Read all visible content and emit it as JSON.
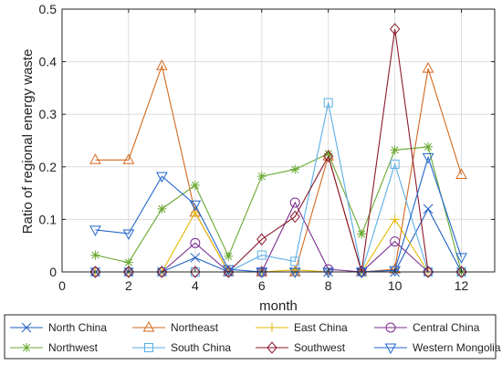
{
  "chart_data": {
    "type": "line",
    "xlabel": "month",
    "ylabel": "Ratio of regional energy waste",
    "xlim": [
      0,
      13
    ],
    "ylim": [
      0,
      0.5
    ],
    "xticks": [
      0,
      2,
      4,
      6,
      8,
      10,
      12
    ],
    "yticks": [
      0,
      0.1,
      0.2,
      0.3,
      0.4,
      0.5
    ],
    "xtick_labels": [
      "0",
      "2",
      "4",
      "6",
      "8",
      "10",
      "12"
    ],
    "ytick_labels": [
      "0",
      "0.1",
      "0.2",
      "0.3",
      "0.4",
      "0.5"
    ],
    "grid": true,
    "legend_position": "bottom",
    "x": [
      1,
      2,
      3,
      4,
      5,
      6,
      7,
      8,
      9,
      10,
      11,
      12
    ],
    "series": [
      {
        "name": "North China",
        "color": "#1f5fbf",
        "marker": "x",
        "values": [
          0,
          0,
          0,
          0.027,
          0,
          0,
          0,
          0,
          0,
          0,
          0.12,
          0
        ]
      },
      {
        "name": "Northeast",
        "color": "#d2691e",
        "marker": "triangle-up",
        "values": [
          0.213,
          0.213,
          0.392,
          0.113,
          0,
          0,
          0,
          0.22,
          0,
          0.005,
          0.387,
          0.185
        ]
      },
      {
        "name": "East China",
        "color": "#e6b800",
        "marker": "plus",
        "values": [
          0,
          0,
          0,
          0.113,
          0,
          0,
          0.004,
          0,
          0,
          0.1,
          0,
          0
        ]
      },
      {
        "name": "Central China",
        "color": "#7b2d8e",
        "marker": "circle",
        "values": [
          0,
          0,
          0,
          0.055,
          0,
          0,
          0.132,
          0.005,
          0,
          0.058,
          0,
          0
        ]
      },
      {
        "name": "Northwest",
        "color": "#6aa832",
        "marker": "asterisk",
        "values": [
          0.032,
          0.018,
          0.12,
          0.165,
          0.03,
          0.182,
          0.195,
          0.225,
          0.072,
          0.232,
          0.238,
          0
        ]
      },
      {
        "name": "South China",
        "color": "#5aaee6",
        "marker": "square",
        "values": [
          0,
          0,
          0,
          0,
          0,
          0.032,
          0.02,
          0.322,
          0,
          0.205,
          0,
          0
        ]
      },
      {
        "name": "Southwest",
        "color": "#8b1a2b",
        "marker": "diamond",
        "values": [
          0,
          0,
          0,
          0,
          0,
          0.062,
          0.105,
          0.22,
          0,
          0.462,
          0,
          0
        ]
      },
      {
        "name": "Western Mongolia",
        "color": "#2266cc",
        "marker": "triangle-down",
        "values": [
          0.08,
          0.073,
          0.182,
          0.128,
          0.005,
          0,
          0,
          0,
          0,
          0.003,
          0.218,
          0.028
        ]
      }
    ]
  }
}
